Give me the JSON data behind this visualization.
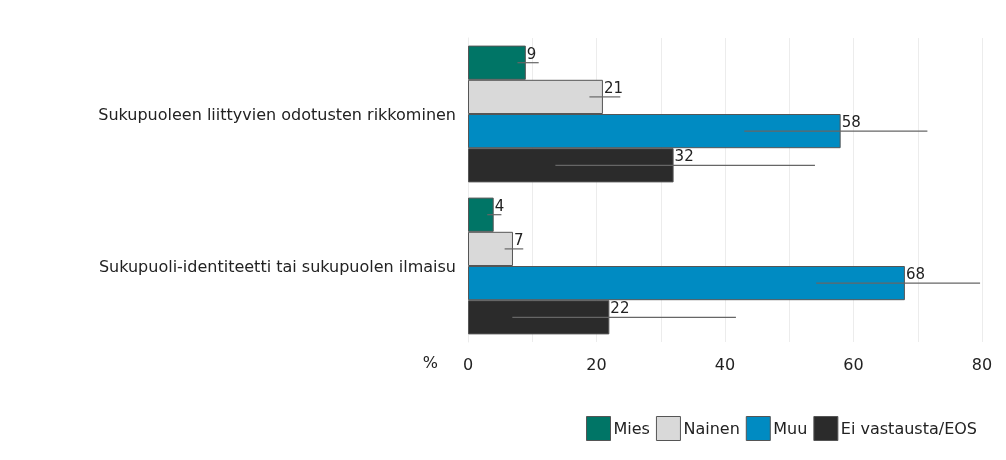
{
  "chart_data": {
    "type": "bar",
    "orientation": "horizontal",
    "xlabel": "%",
    "categories": [
      "Sukupuoleen liittyvien odotusten rikkominen",
      "Sukupuoli-identiteetti tai sukupuolen ilmaisu"
    ],
    "series": [
      {
        "name": "Mies",
        "color": "#007566",
        "values": [
          9,
          4
        ],
        "errors": [
          [
            7.7,
            11
          ],
          [
            3,
            5.2
          ]
        ]
      },
      {
        "name": "Nainen",
        "color": "#d9d9d9",
        "values": [
          21,
          7
        ],
        "errors": [
          [
            18.9,
            23.7
          ],
          [
            5.7,
            8.6
          ]
        ]
      },
      {
        "name": "Muu",
        "color": "#008bc2",
        "values": [
          58,
          68
        ],
        "errors": [
          [
            43,
            71.5
          ],
          [
            54.2,
            79.7
          ]
        ]
      },
      {
        "name": "Ei vastausta/EOS",
        "color": "#2b2b2b",
        "values": [
          32,
          22
        ],
        "errors": [
          [
            13.6,
            54
          ],
          [
            6.9,
            41.7
          ]
        ]
      }
    ],
    "xlim": [
      0,
      80
    ],
    "xticks": [
      0,
      {
        "value": 10,
        "label": null
      },
      20,
      {
        "value": 30,
        "label": null
      },
      40,
      {
        "value": 50,
        "label": null
      },
      60,
      {
        "value": 70,
        "label": null
      },
      80
    ],
    "grid": "x",
    "legend": "bottom right",
    "data_labels": true
  }
}
